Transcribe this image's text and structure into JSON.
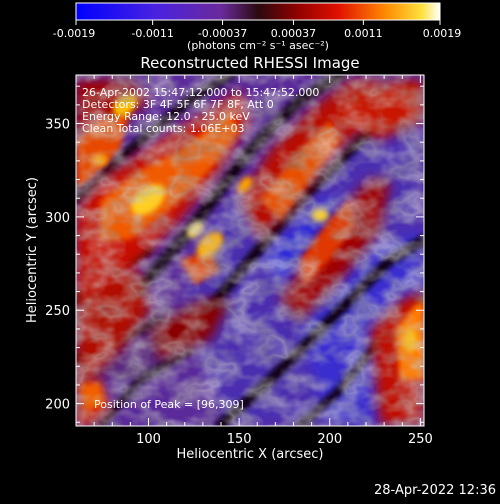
{
  "colorbar": {
    "ticks": [
      "-0.0019",
      "-0.0011",
      "-0.00037",
      "0.00037",
      "0.0011",
      "0.0019"
    ],
    "units": "(photons cm⁻² s⁻¹ asec⁻²)"
  },
  "chart_data": {
    "type": "heatmap",
    "title": "Reconstructed RHESSI Image",
    "xlabel": "Heliocentric X (arcsec)",
    "ylabel": "Heliocentric Y (arcsec)",
    "xlim": [
      60,
      252
    ],
    "ylim": [
      188,
      376
    ],
    "xticks": [
      100,
      150,
      200,
      250
    ],
    "yticks": [
      200,
      250,
      300,
      350
    ],
    "value_range": [
      -0.0019,
      0.0019
    ],
    "annotations": [
      "26-Apr-2002 15:47:12.000 to 15:47:52.000",
      "Detectors: 3F 4F 5F 6F 7F 8F, Att 0",
      "Energy Range: 12.0 - 25.0 keV",
      "Clean    Total counts: 1.06E+03"
    ],
    "peak_label": "Position of Peak = [96,309]",
    "peak": [
      96,
      309
    ]
  },
  "footer": {
    "timestamp": "28-Apr-2022 12:36"
  }
}
